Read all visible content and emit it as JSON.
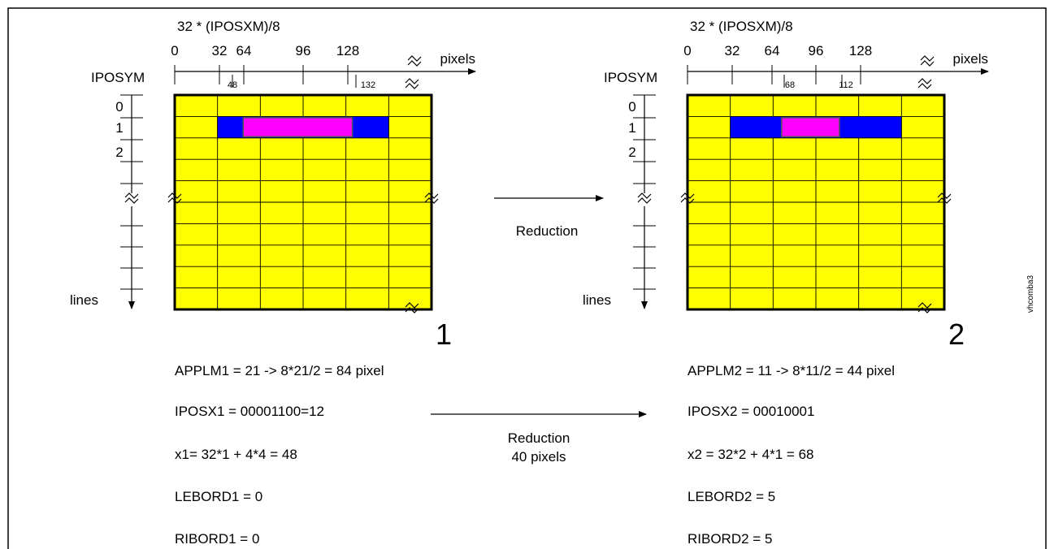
{
  "side_label": "vhcomba3",
  "center": {
    "top_arrow_label": "Reduction",
    "bottom_arrow_label_1": "Reduction",
    "bottom_arrow_label_2": "40 pixels"
  },
  "panels": [
    {
      "id": "1",
      "number": "1",
      "formula_top": "32 * (IPOSXM)/8",
      "x_axis_label": "pixels",
      "y_axis_label": "IPOSYM",
      "lines_label": "lines",
      "x_ticks": [
        "0",
        "32",
        "64",
        "96",
        "128"
      ],
      "x_marks": [
        "48",
        "132"
      ],
      "y_ticks": [
        "0",
        "1",
        "2"
      ],
      "grid_color": "#ffff00",
      "bar_blue": "#0000ff",
      "bar_magenta": "#ff00ff",
      "blue_cols": [
        1,
        5
      ],
      "magenta_cols": [
        1.6,
        4.15
      ],
      "params": [
        "APPLM1 = 21 -> 8*21/2 = 84 pixel",
        "IPOSX1 = 00001100=12",
        "x1= 32*1 + 4*4 = 48",
        "LEBORD1 = 0",
        "RIBORD1 = 0"
      ]
    },
    {
      "id": "2",
      "number": "2",
      "formula_top": "32 * (IPOSXM)/8",
      "x_axis_label": "pixels",
      "y_axis_label": "IPOSYM",
      "lines_label": "lines",
      "x_ticks": [
        "0",
        "32",
        "64",
        "96",
        "128"
      ],
      "x_marks": [
        "68",
        "112"
      ],
      "y_ticks": [
        "0",
        "1",
        "2"
      ],
      "grid_color": "#ffff00",
      "bar_blue": "#0000ff",
      "bar_magenta": "#ff00ff",
      "blue_cols": [
        1,
        5
      ],
      "magenta_cols": [
        2.2,
        3.55
      ],
      "params": [
        "APPLM2 = 11 -> 8*11/2 = 44 pixel",
        "IPOSX2 = 00010001",
        "x2 = 32*2 + 4*1 = 68",
        "LEBORD2 = 5",
        "RIBORD2 = 5"
      ]
    }
  ]
}
